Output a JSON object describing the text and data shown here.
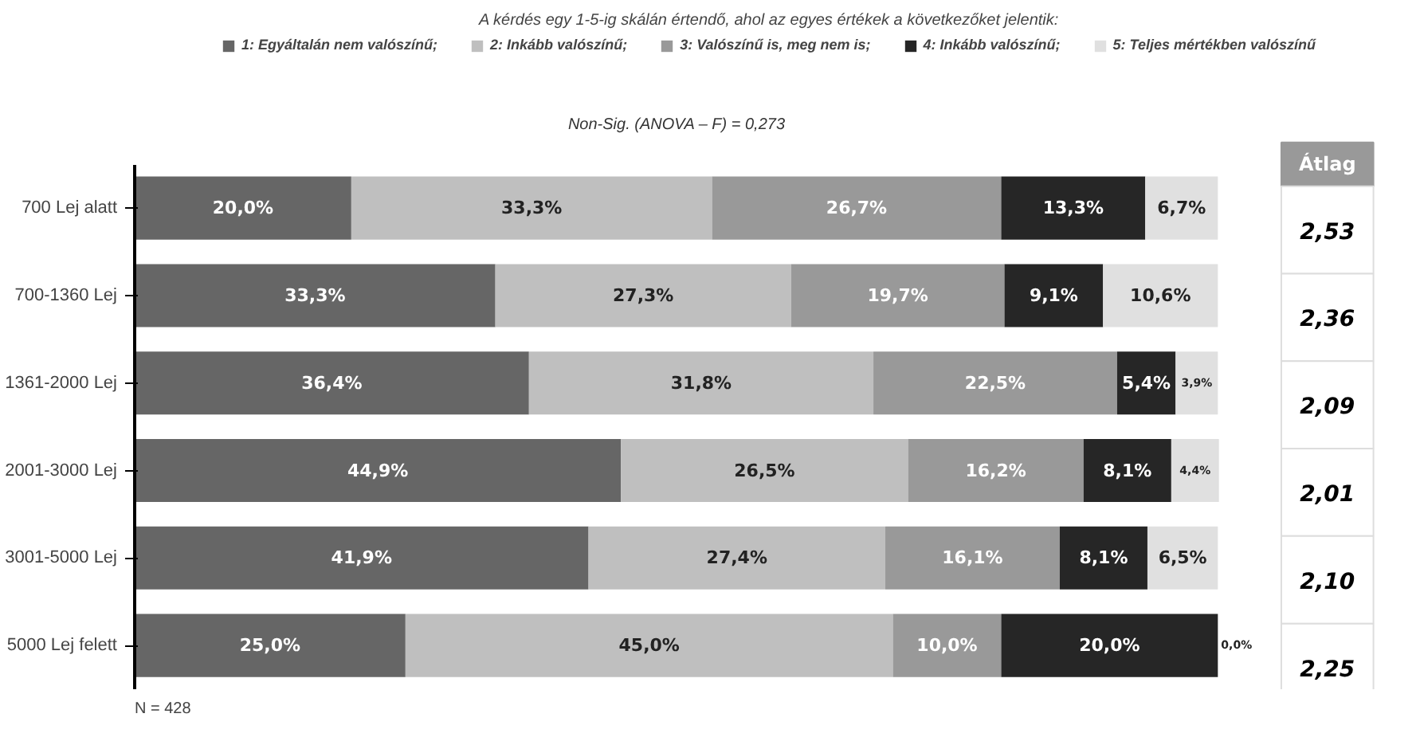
{
  "chart_data": {
    "type": "bar",
    "orientation": "horizontal",
    "stacked": true,
    "title": "A kérdés egy 1-5-ig skálán értendő, ahol az egyes értékek a következőket jelentik:",
    "subtitle": "Non-Sig. (ANOVA – F) = 0,273",
    "categories": [
      "700 Lej alatt",
      "700-1360 Lej",
      "1361-2000 Lej",
      "2001-3000 Lej",
      "3001-5000 Lej",
      "5000 Lej felett"
    ],
    "series": [
      {
        "name": "1: Egyáltalán nem valószínű;",
        "color": "#666666",
        "values": [
          20.0,
          33.3,
          36.4,
          44.9,
          41.9,
          25.0
        ],
        "value_labels": [
          "20,0%",
          "33,3%",
          "36,4%",
          "44,9%",
          "41,9%",
          "25,0%"
        ]
      },
      {
        "name": "2: Inkább valószínű;",
        "color": "#bfbfbf",
        "values": [
          33.3,
          27.3,
          31.8,
          26.5,
          27.4,
          45.0
        ],
        "value_labels": [
          "33,3%",
          "27,3%",
          "31,8%",
          "26,5%",
          "27,4%",
          "45,0%"
        ]
      },
      {
        "name": "3: Valószínű is, meg nem is;",
        "color": "#999999",
        "values": [
          26.7,
          19.7,
          22.5,
          16.2,
          16.1,
          10.0
        ],
        "value_labels": [
          "26,7%",
          "19,7%",
          "22,5%",
          "16,2%",
          "16,1%",
          "10,0%"
        ]
      },
      {
        "name": "4: Inkább valószínű;",
        "color": "#262626",
        "values": [
          13.3,
          9.1,
          5.4,
          8.1,
          8.1,
          20.0
        ],
        "value_labels": [
          "13,3%",
          "9,1%",
          "5,4%",
          "8,1%",
          "8,1%",
          "20,0%"
        ]
      },
      {
        "name": "5: Teljes mértékben valószínű",
        "color": "#e0e0e0",
        "values": [
          6.7,
          10.6,
          3.9,
          4.4,
          6.5,
          0.0
        ],
        "value_labels": [
          "6,7%",
          "10,6%",
          "3,9%",
          "4,4%",
          "6,5%",
          "0,0%"
        ]
      }
    ],
    "legend": "top",
    "grid": false,
    "annotations": [
      "Átlag",
      "2,53",
      "2,36",
      "2,09",
      "2,01",
      "2,10",
      "2,25",
      "N = 428"
    ]
  }
}
